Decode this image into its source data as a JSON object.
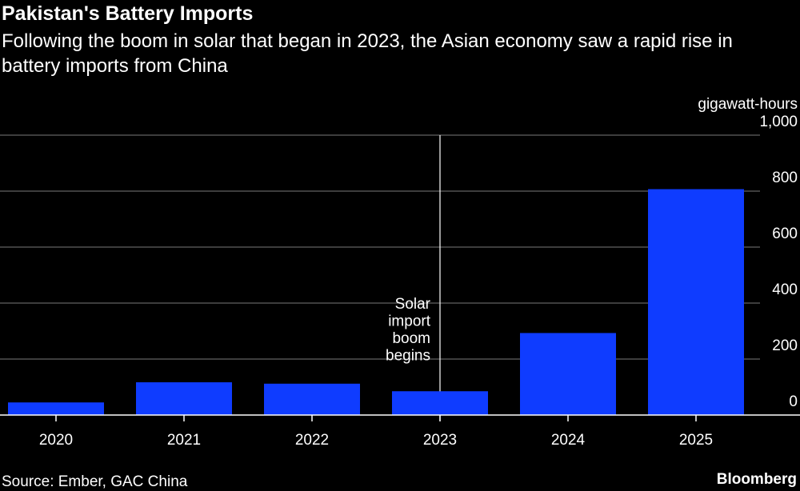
{
  "header": {
    "title": "Pakistan's Battery Imports",
    "subtitle": "Following the boom in solar that began in 2023, the Asian economy saw a rapid rise in battery imports from China"
  },
  "footer": {
    "source": "Source: Ember, GAC China",
    "brand": "Bloomberg"
  },
  "chart_data": {
    "type": "bar",
    "title": "Pakistan's Battery Imports",
    "ylabel": "gigawatt-hours",
    "xlabel": "",
    "categories": [
      "2020",
      "2021",
      "2022",
      "2023",
      "2024",
      "2025"
    ],
    "values": [
      45,
      117,
      112,
      85,
      293,
      807
    ],
    "ylim": [
      0,
      1000
    ],
    "yticks": [
      0,
      200,
      400,
      600,
      800,
      1000
    ],
    "ytick_labels": [
      "0",
      "200",
      "400",
      "600",
      "800",
      "1,000"
    ],
    "grid": true,
    "annotation": {
      "text_lines": [
        "Solar",
        "import",
        "boom",
        "begins"
      ],
      "at_category": "2023"
    },
    "colors": {
      "bar": "#0f3cff",
      "grid": "#7a7a7a",
      "axis": "#ffffff",
      "background": "#000000"
    }
  }
}
